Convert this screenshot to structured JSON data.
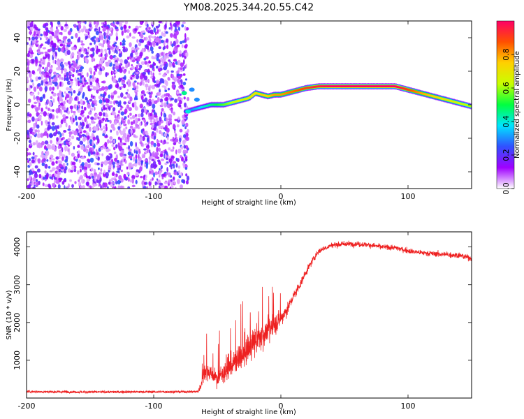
{
  "title": "YM08.2025.344.20.55.C42",
  "chart_data": [
    {
      "type": "heatmap",
      "title": "YM08.2025.344.20.55.C42",
      "xlabel": "Height of straight line (km)",
      "ylabel": "Frequency (Hz)",
      "xlim": [
        -200,
        150
      ],
      "ylim": [
        -50,
        50
      ],
      "xticks": [
        -200,
        -100,
        0,
        100
      ],
      "yticks": [
        -40,
        -20,
        0,
        20,
        40
      ],
      "noise_region_x": [
        -200,
        -73
      ],
      "ridge_x": [
        -75,
        -70,
        -65,
        -60,
        -55,
        -50,
        -45,
        -40,
        -35,
        -30,
        -25,
        -20,
        -15,
        -10,
        -5,
        0,
        10,
        20,
        30,
        40,
        50,
        60,
        70,
        80,
        90,
        100,
        110,
        120,
        130,
        140,
        150
      ],
      "ridge_freq": [
        -4,
        -3,
        -2,
        -1,
        0,
        0,
        0,
        1,
        2,
        3,
        4,
        7,
        6,
        5,
        6,
        6,
        8,
        10,
        11,
        11,
        11,
        11,
        11,
        11,
        11,
        9,
        7,
        5,
        3,
        1,
        -1
      ],
      "ridge_amplitude": [
        0.25,
        0.3,
        0.35,
        0.4,
        0.45,
        0.5,
        0.55,
        0.6,
        0.65,
        0.65,
        0.7,
        0.7,
        0.75,
        0.75,
        0.8,
        0.8,
        0.85,
        0.9,
        0.95,
        1.0,
        1.0,
        1.0,
        1.0,
        1.0,
        1.0,
        0.9,
        0.8,
        0.75,
        0.7,
        0.65,
        0.6
      ],
      "colorbar": {
        "label": "Normalized spectral amplitude",
        "ticks": [
          0.0,
          0.2,
          0.4,
          0.6,
          0.8
        ],
        "range": [
          0,
          1
        ],
        "colors": [
          "#ffffff",
          "#a000ff",
          "#3050ff",
          "#00e5ff",
          "#00ff40",
          "#c8ff00",
          "#ffd000",
          "#ff5000",
          "#ff0066"
        ]
      }
    },
    {
      "type": "line",
      "xlabel": "Height of straight line (km)",
      "ylabel": "SNR (10 * v/v)",
      "xlim": [
        -200,
        150
      ],
      "ylim": [
        0,
        4400
      ],
      "xticks": [
        -200,
        -100,
        0,
        100
      ],
      "yticks": [
        1000,
        2000,
        3000,
        4000
      ],
      "series": [
        {
          "name": "SNR",
          "color": "#ee2020",
          "x": [
            -200,
            -150,
            -100,
            -80,
            -65,
            -62,
            -60,
            -55,
            -50,
            -45,
            -40,
            -35,
            -30,
            -25,
            -20,
            -15,
            -10,
            -5,
            0,
            5,
            10,
            15,
            20,
            25,
            30,
            40,
            50,
            60,
            70,
            80,
            90,
            100,
            110,
            120,
            130,
            140,
            150
          ],
          "base": [
            170,
            160,
            165,
            165,
            170,
            400,
            750,
            650,
            500,
            700,
            850,
            950,
            1150,
            1350,
            1500,
            1650,
            1800,
            1950,
            2100,
            2350,
            2700,
            3000,
            3350,
            3650,
            3900,
            4050,
            4080,
            4080,
            4050,
            4000,
            3980,
            3900,
            3850,
            3820,
            3800,
            3780,
            3700
          ],
          "noise": [
            50,
            50,
            50,
            50,
            50,
            250,
            380,
            320,
            280,
            420,
            520,
            560,
            600,
            600,
            600,
            560,
            500,
            420,
            350,
            260,
            200,
            170,
            150,
            130,
            120,
            110,
            110,
            110,
            110,
            110,
            110,
            110,
            110,
            110,
            120,
            120,
            120
          ]
        }
      ]
    }
  ]
}
